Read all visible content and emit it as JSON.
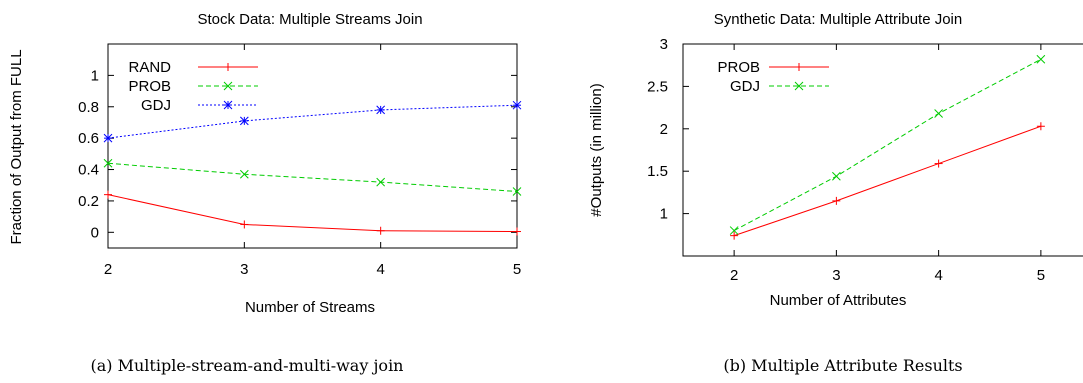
{
  "chart_data": [
    {
      "type": "line",
      "title": "Stock Data: Multiple Streams Join",
      "xlabel": "Number of Streams",
      "ylabel": "Fraction of Output from FULL",
      "x": [
        2,
        3,
        4,
        5
      ],
      "xlim": [
        2,
        5
      ],
      "ylim": [
        -0.1,
        1.2
      ],
      "xticks": [
        "2",
        "3",
        "4",
        "5"
      ],
      "yticks": [
        "0",
        "0.2",
        "0.4",
        "0.6",
        "0.8",
        "1"
      ],
      "legend_position": "top-left",
      "series": [
        {
          "name": "RAND",
          "color": "#ff0000",
          "marker": "plus",
          "dash": "solid",
          "values": [
            0.24,
            0.05,
            0.01,
            0.005
          ]
        },
        {
          "name": "PROB",
          "color": "#00cc00",
          "marker": "x",
          "dash": "dashed",
          "values": [
            0.44,
            0.37,
            0.32,
            0.26
          ]
        },
        {
          "name": "GDJ",
          "color": "#0000ff",
          "marker": "star",
          "dash": "dotted",
          "values": [
            0.6,
            0.71,
            0.78,
            0.81
          ]
        }
      ],
      "caption": "(a) Multiple-stream-and-multi-way join"
    },
    {
      "type": "line",
      "title": "Synthetic Data: Multiple Attribute Join",
      "xlabel": "Number of Attributes",
      "ylabel": "#Outputs (in million)",
      "x": [
        2,
        3,
        4,
        5
      ],
      "xlim": [
        1.5,
        5.5
      ],
      "ylim": [
        0.5,
        3
      ],
      "xticks": [
        "2",
        "3",
        "4",
        "5"
      ],
      "yticks": [
        "1",
        "1.5",
        "2",
        "2.5",
        "3"
      ],
      "legend_position": "top-left",
      "series": [
        {
          "name": "PROB",
          "color": "#ff0000",
          "marker": "plus",
          "dash": "solid",
          "values": [
            0.74,
            1.15,
            1.59,
            2.03
          ]
        },
        {
          "name": "GDJ",
          "color": "#00cc00",
          "marker": "x",
          "dash": "dashed",
          "values": [
            0.8,
            1.44,
            2.18,
            2.82
          ]
        }
      ],
      "caption": "(b) Multiple Attribute Results"
    }
  ]
}
